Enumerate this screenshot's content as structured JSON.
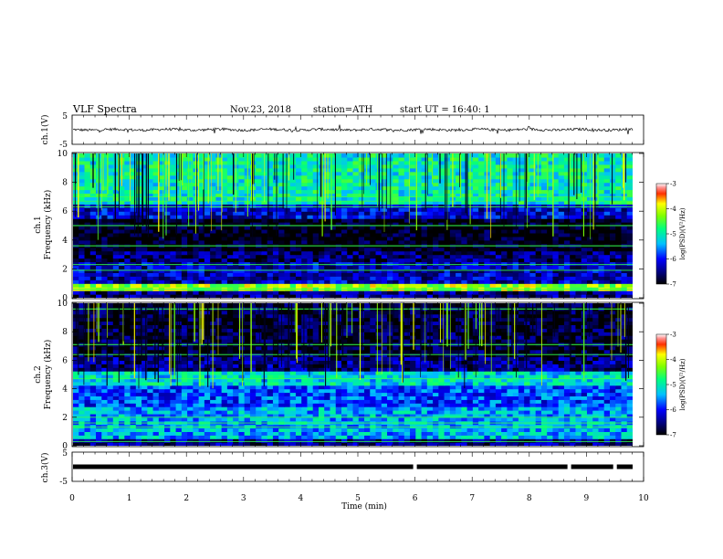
{
  "header": {
    "title": "VLF  Spectra",
    "date": "Nov.23, 2018",
    "station": "station=ATH",
    "start_ut": "start  UT  =   16:40: 1"
  },
  "chart_data": [
    {
      "id": "ch1-waveform",
      "type": "line",
      "ylabel": "ch.1(V)",
      "ylim": [
        -5,
        5
      ],
      "yticks": [
        "5",
        "-5"
      ],
      "xlim": [
        0,
        10
      ],
      "note_values": "broadband waveform, approx. -0.5 to 0.5 V with spikes to about ±1.5 V"
    },
    {
      "id": "ch1-spectrogram",
      "type": "heatmap",
      "ylabel": "ch.1\nFrequency  (kHz)",
      "ylim": [
        0,
        10
      ],
      "yticks": [
        "0",
        "2",
        "4",
        "6",
        "8",
        "10"
      ],
      "xlim": [
        0,
        10
      ],
      "colorbar": {
        "label": "log(PSD)(V²/Hz)",
        "range": [
          -7,
          -3
        ],
        "ticks": [
          "-3",
          "-4",
          "-5",
          "-6",
          "-7"
        ]
      },
      "bands_khz": [
        {
          "from": 0,
          "to": 0.4,
          "level": -6.5
        },
        {
          "from": 0.4,
          "to": 0.9,
          "level": -4.2
        },
        {
          "from": 0.9,
          "to": 2.4,
          "level": -6.3
        },
        {
          "from": 2.4,
          "to": 3.2,
          "level": -6.6
        },
        {
          "from": 3.2,
          "to": 5.6,
          "level": -7.0
        },
        {
          "from": 5.6,
          "to": 6.6,
          "level": -6.2
        },
        {
          "from": 6.6,
          "to": 10,
          "level": -5.0
        }
      ],
      "lines_khz": [
        0.6,
        1.9,
        2.3,
        3.6,
        5.0,
        6.3,
        6.7,
        7.0
      ]
    },
    {
      "id": "ch2-spectrogram",
      "type": "heatmap",
      "ylabel": "ch.2\nFrequency  (kHz)",
      "ylim": [
        0,
        10
      ],
      "yticks": [
        "0",
        "2",
        "4",
        "6",
        "8",
        "10"
      ],
      "xlim": [
        0,
        10
      ],
      "colorbar": {
        "label": "log(PSD)(V²/Hz)",
        "range": [
          -7,
          -3
        ],
        "ticks": [
          "-3",
          "-4",
          "-5",
          "-6",
          "-7"
        ]
      },
      "bands_khz": [
        {
          "from": 0,
          "to": 0.4,
          "level": -6.5
        },
        {
          "from": 0.4,
          "to": 2.8,
          "level": -5.4
        },
        {
          "from": 2.8,
          "to": 4.3,
          "level": -5.8
        },
        {
          "from": 4.3,
          "to": 5.2,
          "level": -5.2
        },
        {
          "from": 5.2,
          "to": 6.2,
          "level": -6.5
        },
        {
          "from": 6.2,
          "to": 10,
          "level": -6.8
        }
      ],
      "lines_khz": [
        0.3,
        1.3,
        1.6,
        2.0,
        4.7,
        6.4,
        7.1,
        9.6
      ]
    },
    {
      "id": "ch3-trace",
      "type": "line",
      "ylabel": "ch.3(V)",
      "ylim": [
        -5,
        5
      ],
      "yticks": [
        "5",
        "-5"
      ],
      "xlim": [
        0,
        10
      ],
      "level": 0,
      "gaps_min": [
        6.0,
        8.7,
        9.5
      ]
    }
  ],
  "xaxis": {
    "label": "Time  (min)",
    "ticks": [
      "0",
      "1",
      "2",
      "3",
      "4",
      "5",
      "6",
      "7",
      "8",
      "9",
      "10"
    ]
  }
}
